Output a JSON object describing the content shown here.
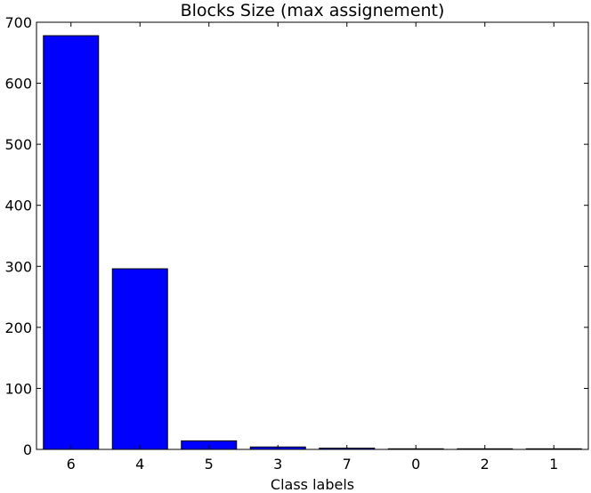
{
  "chart_data": {
    "type": "bar",
    "title": "Blocks Size (max assignement)",
    "xlabel": "Class labels",
    "ylabel": "",
    "categories": [
      "6",
      "4",
      "5",
      "3",
      "7",
      "0",
      "2",
      "1"
    ],
    "values": [
      678,
      296,
      14,
      4,
      2,
      1,
      1,
      1
    ],
    "ylim": [
      0,
      700
    ],
    "yticks": [
      0,
      100,
      200,
      300,
      400,
      500,
      600,
      700
    ],
    "grid": false,
    "legend": "none",
    "bar_color": "#0000ff",
    "edge_color": "#000000"
  }
}
